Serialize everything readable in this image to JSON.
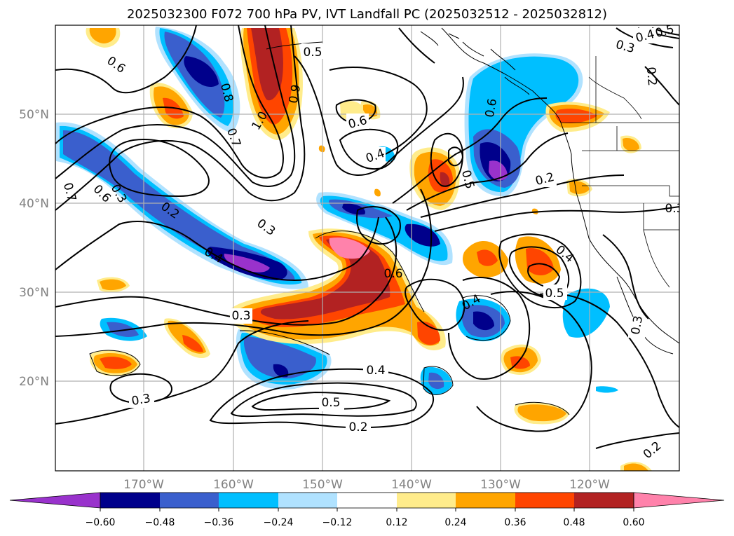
{
  "title": "2025032300 F072 700 hPa PV, IVT Landfall PC (2025032512 - 2025032812)",
  "lat_labels": [
    "50°N",
    "40°N",
    "30°N",
    "20°N"
  ],
  "lon_labels": [
    "170°W",
    "160°W",
    "150°W",
    "140°W",
    "130°W",
    "120°W"
  ],
  "contour_labels": [
    "0.6",
    "0.8",
    "1.0",
    "0.7",
    "0.9",
    "0.5",
    "0.6",
    "0.4",
    "0.7",
    "0.6",
    "0.3",
    "0.2",
    "0.3",
    "0.4",
    "0.6",
    "0.3",
    "0.4",
    "0.5",
    "0.2",
    "0.3",
    "0.5",
    "0.6",
    "0.2",
    "0.4",
    "0.5",
    "0.4",
    "0.3",
    "0.2",
    "0.3",
    "0.4",
    "0.2",
    "0.5",
    "0.3"
  ],
  "colorbar": {
    "ticks": [
      "−0.60",
      "−0.48",
      "−0.36",
      "−0.24",
      "−0.12",
      "0.12",
      "0.24",
      "0.36",
      "0.48",
      "0.60"
    ],
    "colors": [
      "#9932cc",
      "#00008b",
      "#3a5fcd",
      "#00bfff",
      "#b0e2ff",
      "#ffffff",
      "#ffec8b",
      "#ffa500",
      "#ff4500",
      "#b22222",
      "#ff82ab"
    ]
  }
}
